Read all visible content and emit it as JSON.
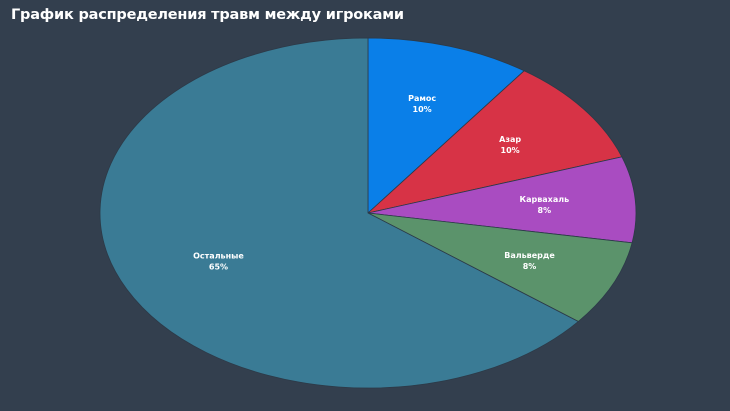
{
  "chart_data": {
    "type": "pie",
    "title": "График распределения травм между игроками",
    "slices": [
      {
        "label": "Рамос",
        "value": 10,
        "value_label": "10%",
        "color": "#0a7fe8"
      },
      {
        "label": "Азар",
        "value": 10,
        "value_label": "10%",
        "color": "#d73346"
      },
      {
        "label": "Карвахаль",
        "value": 8,
        "value_label": "8%",
        "color": "#a94cc1"
      },
      {
        "label": "Вальверде",
        "value": 8,
        "value_label": "8%",
        "color": "#5b936b"
      },
      {
        "label": "Остальные",
        "value": 65,
        "value_label": "65%",
        "color": "#3a7b95"
      }
    ],
    "start_angle_deg": 0,
    "direction": "clockwise",
    "legend": "none"
  }
}
